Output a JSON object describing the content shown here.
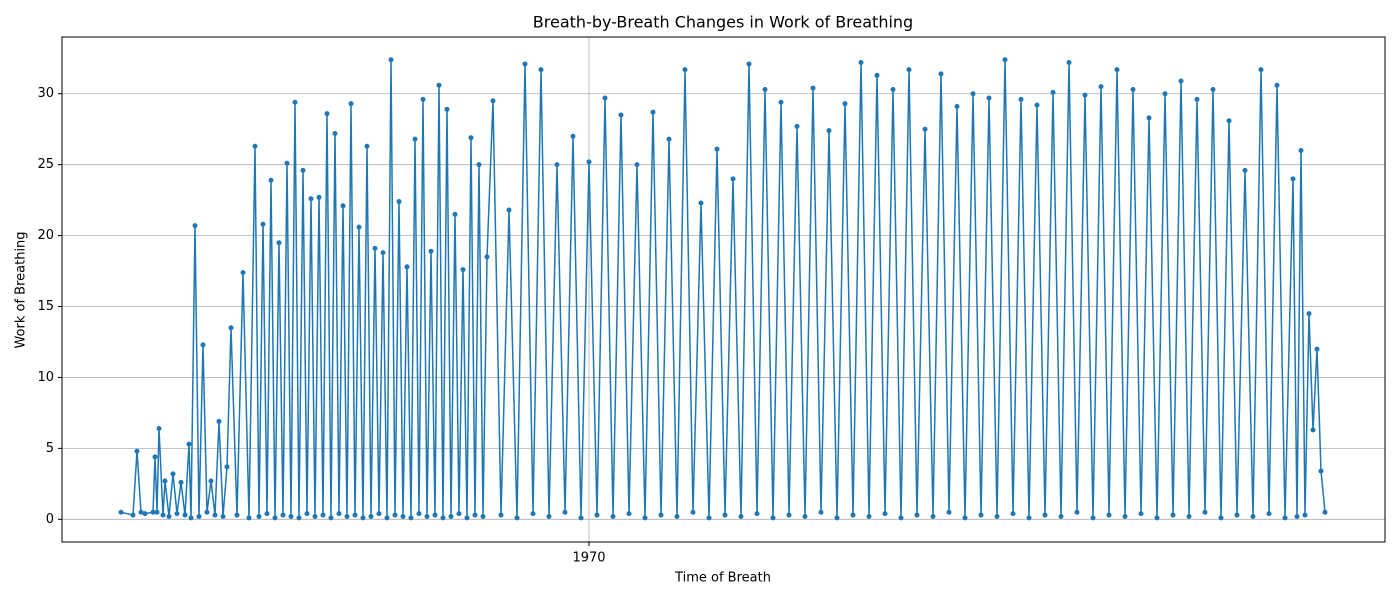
{
  "chart_data": {
    "type": "line",
    "title": "Breath-by-Breath Changes in Work of Breathing",
    "x_label": "Time of Breath",
    "y_label": "Work of Breathing",
    "xlim": [
      -527,
      796
    ],
    "xticks": [
      {
        "value": 0,
        "label": "1970"
      }
    ],
    "ylim": [
      -1.6,
      34.0
    ],
    "yticks": [
      0,
      5,
      10,
      15,
      20,
      25,
      30
    ],
    "grid": true,
    "markers": true,
    "series": [
      {
        "name": "Work of Breathing",
        "color": "#1f77b4",
        "x": [
          -468,
          -456,
          -452,
          -448,
          -444,
          -436,
          -434,
          -432,
          -430,
          -426,
          -424,
          -420,
          -416,
          -412,
          -408,
          -404,
          -400,
          -398,
          -394,
          -390,
          -386,
          -382,
          -378,
          -374,
          -370,
          -366,
          -362,
          -358,
          -352,
          -346,
          -340,
          -334,
          -330,
          -326,
          -322,
          -318,
          -314,
          -310,
          -306,
          -302,
          -298,
          -294,
          -290,
          -286,
          -282,
          -278,
          -274,
          -270,
          -266,
          -262,
          -258,
          -254,
          -250,
          -246,
          -242,
          -238,
          -234,
          -230,
          -226,
          -222,
          -218,
          -214,
          -210,
          -206,
          -202,
          -198,
          -194,
          -190,
          -186,
          -182,
          -178,
          -174,
          -170,
          -166,
          -162,
          -158,
          -154,
          -150,
          -146,
          -142,
          -138,
          -134,
          -130,
          -126,
          -122,
          -118,
          -114,
          -110,
          -106,
          -102,
          -96,
          -88,
          -80,
          -72,
          -64,
          -56,
          -48,
          -40,
          -32,
          -24,
          -16,
          -8,
          0,
          8,
          16,
          24,
          32,
          40,
          48,
          56,
          64,
          72,
          80,
          88,
          96,
          104,
          112,
          120,
          128,
          136,
          144,
          152,
          160,
          168,
          176,
          184,
          192,
          200,
          208,
          216,
          224,
          232,
          240,
          248,
          256,
          264,
          272,
          280,
          288,
          296,
          304,
          312,
          320,
          328,
          336,
          344,
          352,
          360,
          368,
          376,
          384,
          392,
          400,
          408,
          416,
          424,
          432,
          440,
          448,
          456,
          464,
          472,
          480,
          488,
          496,
          504,
          512,
          520,
          528,
          536,
          544,
          552,
          560,
          568,
          576,
          584,
          592,
          600,
          608,
          616,
          624,
          632,
          640,
          648,
          656,
          664,
          672,
          680,
          688,
          696,
          704,
          708,
          712,
          716,
          720,
          724,
          728,
          732,
          736
        ],
        "values": [
          0.5,
          0.3,
          4.8,
          0.5,
          0.4,
          0.5,
          4.4,
          0.5,
          6.4,
          0.3,
          2.7,
          0.2,
          3.2,
          0.4,
          2.6,
          0.3,
          5.3,
          0.1,
          20.7,
          0.2,
          12.3,
          0.5,
          2.7,
          0.3,
          6.9,
          0.2,
          3.7,
          13.5,
          0.3,
          17.4,
          0.1,
          26.3,
          0.2,
          20.8,
          0.4,
          23.9,
          0.1,
          19.5,
          0.3,
          25.1,
          0.2,
          29.4,
          0.1,
          24.6,
          0.4,
          22.6,
          0.2,
          22.7,
          0.3,
          28.6,
          0.1,
          27.2,
          0.4,
          22.1,
          0.2,
          29.3,
          0.3,
          20.6,
          0.1,
          26.3,
          0.2,
          19.1,
          0.4,
          18.8,
          0.1,
          32.4,
          0.3,
          22.4,
          0.2,
          17.8,
          0.1,
          26.8,
          0.4,
          29.6,
          0.2,
          18.9,
          0.3,
          30.6,
          0.1,
          28.9,
          0.2,
          21.5,
          0.4,
          17.6,
          0.1,
          26.9,
          0.3,
          25.0,
          0.2,
          18.5,
          29.5,
          0.3,
          21.8,
          0.1,
          32.1,
          0.4,
          31.7,
          0.2,
          25.0,
          0.5,
          27.0,
          0.1,
          25.2,
          0.3,
          29.7,
          0.2,
          28.5,
          0.4,
          25.0,
          0.1,
          28.7,
          0.3,
          26.8,
          0.2,
          31.7,
          0.5,
          22.3,
          0.1,
          26.1,
          0.3,
          24.0,
          0.2,
          32.1,
          0.4,
          30.3,
          0.1,
          29.4,
          0.3,
          27.7,
          0.2,
          30.4,
          0.5,
          27.4,
          0.1,
          29.3,
          0.3,
          32.2,
          0.2,
          31.3,
          0.4,
          30.3,
          0.1,
          31.7,
          0.3,
          27.5,
          0.2,
          31.4,
          0.5,
          29.1,
          0.1,
          30.0,
          0.3,
          29.7,
          0.2,
          32.4,
          0.4,
          29.6,
          0.1,
          29.2,
          0.3,
          30.1,
          0.2,
          32.2,
          0.5,
          29.9,
          0.1,
          30.5,
          0.3,
          31.7,
          0.2,
          30.3,
          0.4,
          28.3,
          0.1,
          30.0,
          0.3,
          30.9,
          0.2,
          29.6,
          0.5,
          30.3,
          0.1,
          28.1,
          0.3,
          24.6,
          0.2,
          31.7,
          0.4,
          30.6,
          0.1,
          24.0,
          0.2,
          26.0,
          0.3,
          14.5,
          6.3,
          12.0,
          3.4,
          0.5
        ]
      }
    ]
  }
}
